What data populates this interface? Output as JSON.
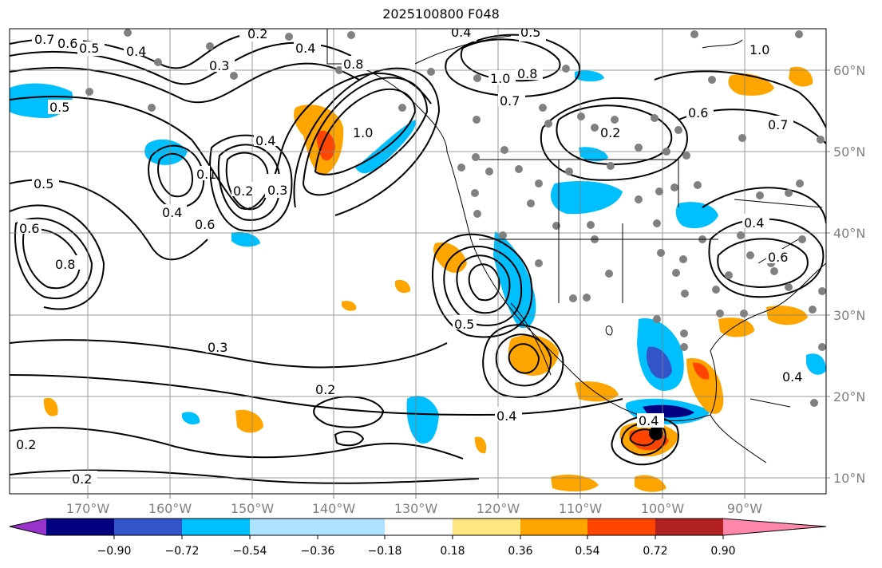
{
  "title": "2025100800 F048",
  "map": {
    "lon_labels": [
      "170°W",
      "160°W",
      "150°W",
      "140°W",
      "130°W",
      "120°W",
      "110°W",
      "100°W",
      "90°W"
    ],
    "lat_labels": [
      "60°N",
      "50°N",
      "40°N",
      "30°N",
      "20°N",
      "10°N"
    ],
    "contour_labels": [
      "0.7",
      "0.6",
      "0.5",
      "0.4",
      "0.2",
      "0.3",
      "0.8",
      "0.4",
      "0.4",
      "0.5",
      "1.0",
      "0.8",
      "0.7",
      "0.6",
      "0.2",
      "0.6",
      "0.7",
      "1.0",
      "0.5",
      "0.4",
      "0.3",
      "0.2",
      "0.1",
      "0.4",
      "0.6",
      "1.0",
      "0.8",
      "0.6",
      "0.5",
      "0.3",
      "0.2",
      "0.5",
      "0.3",
      "0.2",
      "0.4",
      "0.2",
      "0.2",
      "0.4",
      "0.4",
      "0.6",
      "0.5",
      "0.4"
    ]
  },
  "colorbar": {
    "ticks": [
      "−0.90",
      "−0.72",
      "−0.54",
      "−0.36",
      "−0.18",
      "0.18",
      "0.36",
      "0.54",
      "0.72",
      "0.90"
    ],
    "colors": [
      "#9933cc",
      "#000080",
      "#3355cc",
      "#00bfff",
      "#aee3ff",
      "#ffffff",
      "#ffe680",
      "#ffa500",
      "#ff4500",
      "#b22222",
      "#ff88aa"
    ]
  }
}
